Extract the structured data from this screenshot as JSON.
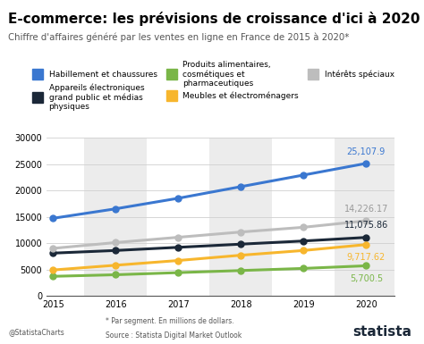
{
  "chart_data": {
    "type": "line",
    "title": "E-commerce: les prévisions de croissance d'ici à 2020",
    "subtitle": "Chiffre d'affaires généré par les ventes en ligne en France de 2015 à 2020*",
    "x": [
      2015,
      2016,
      2017,
      2018,
      2019,
      2020
    ],
    "xlim": [
      2014.9,
      2020.45
    ],
    "xticks": [
      2015,
      2016,
      2017,
      2018,
      2019,
      2020
    ],
    "ylim": [
      0,
      30000
    ],
    "yticks": [
      0,
      5000,
      10000,
      15000,
      20000,
      25000,
      30000
    ],
    "grid": true,
    "legend": "upper center",
    "data_labels": true,
    "marker": "o",
    "series": [
      {
        "name": "Habillement et chaussures",
        "color": "#3a77d0",
        "values": [
          14700,
          16500,
          18500,
          20700,
          22900,
          25107.9
        ],
        "value_labels": [
          null,
          null,
          null,
          null,
          null,
          "25,107.9"
        ]
      },
      {
        "name": "Appareils électroniques grand public et médias physiques",
        "color": "#1b2838",
        "values": [
          8100,
          8600,
          9200,
          9800,
          10400,
          11075.86
        ],
        "value_labels": [
          null,
          null,
          null,
          null,
          null,
          "11,075.86"
        ]
      },
      {
        "name": "Produits alimentaires, cosmétiques et pharmaceutiques",
        "color": "#7ab648",
        "values": [
          3700,
          4000,
          4400,
          4800,
          5200,
          5700.5
        ],
        "value_labels": [
          null,
          null,
          null,
          null,
          null,
          "5,700.5"
        ]
      },
      {
        "name": "Meubles et électroménagers",
        "color": "#f7b62d",
        "values": [
          4900,
          5800,
          6700,
          7700,
          8600,
          9717.62
        ],
        "value_labels": [
          null,
          null,
          null,
          null,
          null,
          "9,717.62"
        ]
      },
      {
        "name": "Intérêts spéciaux",
        "color": "#bdbdbd",
        "values": [
          9000,
          10100,
          11100,
          12100,
          13000,
          14226.17
        ],
        "value_labels": [
          null,
          null,
          null,
          null,
          null,
          "14,226.17"
        ]
      }
    ],
    "notes": [
      "* Par segment. En millions de dollars.",
      "Source : Statista Digital Market Outlook"
    ],
    "credit": "@StatistaCharts",
    "brand": "statista"
  }
}
